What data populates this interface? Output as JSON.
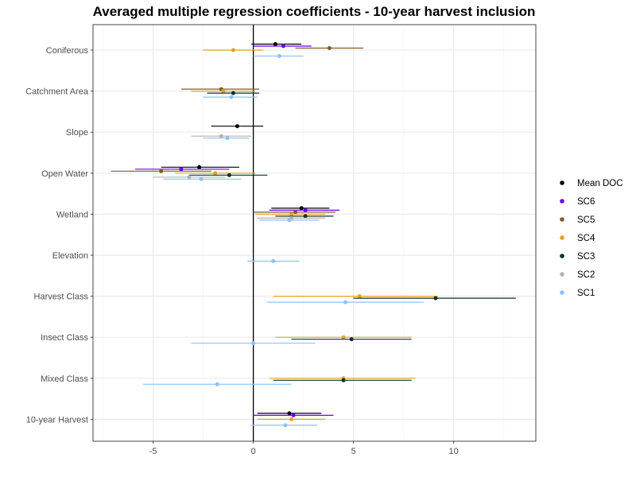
{
  "chart_data": {
    "type": "scatter",
    "title": "Averaged multiple regression coefficients - 10-year harvest inclusion",
    "xlabel": "",
    "ylabel": "",
    "xlim": [
      -8.0,
      14.1
    ],
    "x_ticks": [
      -5,
      0,
      5,
      10
    ],
    "x_tick_labels": [
      "-5",
      "0",
      "5",
      "10"
    ],
    "zero_line": 0,
    "grid": true,
    "legend_position": "right",
    "categories": [
      "Coniferous",
      "Catchment Area",
      "Slope",
      "Open Water",
      "Wetland",
      "Elevation",
      "Harvest Class",
      "Insect Class",
      "Mixed Class",
      "10-year Harvest"
    ],
    "series": [
      {
        "name": "Mean DOC",
        "color": "#000000",
        "points": [
          {
            "category": "Coniferous",
            "estimate": 1.1,
            "lower": -0.1,
            "upper": 2.4
          },
          {
            "category": "Slope",
            "estimate": -0.8,
            "lower": -2.1,
            "upper": 0.5
          },
          {
            "category": "Open Water",
            "estimate": -2.7,
            "lower": -4.6,
            "upper": -0.7
          },
          {
            "category": "Wetland",
            "estimate": 2.4,
            "lower": 0.9,
            "upper": 3.8
          },
          {
            "category": "10-year Harvest",
            "estimate": 1.8,
            "lower": 0.2,
            "upper": 3.4
          }
        ]
      },
      {
        "name": "SC6",
        "color": "#6600ff",
        "points": [
          {
            "category": "Coniferous",
            "estimate": 1.5,
            "lower": 0.0,
            "upper": 2.9
          },
          {
            "category": "Open Water",
            "estimate": -3.6,
            "lower": -5.9,
            "upper": -1.2
          },
          {
            "category": "Wetland",
            "estimate": 2.6,
            "lower": 0.8,
            "upper": 4.3
          },
          {
            "category": "10-year Harvest",
            "estimate": 2.0,
            "lower": 0.0,
            "upper": 4.0
          }
        ]
      },
      {
        "name": "SC5",
        "color": "#7f5a2b",
        "points": [
          {
            "category": "Coniferous",
            "estimate": 3.8,
            "lower": 2.1,
            "upper": 5.5
          },
          {
            "category": "Catchment Area",
            "estimate": -1.6,
            "lower": -3.6,
            "upper": 0.3
          },
          {
            "category": "Open Water",
            "estimate": -4.6,
            "lower": -7.1,
            "upper": -2.1
          },
          {
            "category": "Wetland",
            "estimate": 2.1,
            "lower": 0.0,
            "upper": 4.1
          }
        ]
      },
      {
        "name": "SC4",
        "color": "#e6a21e",
        "points": [
          {
            "category": "Coniferous",
            "estimate": -1.0,
            "lower": -2.5,
            "upper": 0.5
          },
          {
            "category": "Catchment Area",
            "estimate": -1.5,
            "lower": -3.1,
            "upper": 0.1
          },
          {
            "category": "Open Water",
            "estimate": -1.9,
            "lower": -3.9,
            "upper": 0.1
          },
          {
            "category": "Wetland",
            "estimate": 1.9,
            "lower": 0.1,
            "upper": 3.6
          },
          {
            "category": "Harvest Class",
            "estimate": 5.3,
            "lower": 1.0,
            "upper": 9.2
          },
          {
            "category": "Insect Class",
            "estimate": 4.5,
            "lower": 1.1,
            "upper": 7.9
          },
          {
            "category": "Mixed Class",
            "estimate": 4.5,
            "lower": 0.8,
            "upper": 8.1
          },
          {
            "category": "10-year Harvest",
            "estimate": 1.9,
            "lower": 0.2,
            "upper": 3.6
          }
        ]
      },
      {
        "name": "SC3",
        "color": "#0c3030",
        "points": [
          {
            "category": "Catchment Area",
            "estimate": -1.0,
            "lower": -2.3,
            "upper": 0.3
          },
          {
            "category": "Open Water",
            "estimate": -1.2,
            "lower": -3.2,
            "upper": 0.7
          },
          {
            "category": "Wetland",
            "estimate": 2.6,
            "lower": 1.1,
            "upper": 4.0
          },
          {
            "category": "Harvest Class",
            "estimate": 9.1,
            "lower": 5.0,
            "upper": 13.1
          },
          {
            "category": "Insect Class",
            "estimate": 4.9,
            "lower": 1.9,
            "upper": 7.9
          },
          {
            "category": "Mixed Class",
            "estimate": 4.5,
            "lower": 1.0,
            "upper": 7.9
          }
        ]
      },
      {
        "name": "SC2",
        "color": "#b3b3b3",
        "points": [
          {
            "category": "Slope",
            "estimate": -1.6,
            "lower": -3.1,
            "upper": -0.1
          },
          {
            "category": "Open Water",
            "estimate": -3.2,
            "lower": -5.0,
            "upper": -1.4
          },
          {
            "category": "Wetland",
            "estimate": 1.9,
            "lower": 0.2,
            "upper": 3.6
          }
        ]
      },
      {
        "name": "SC1",
        "color": "#8fc1f5",
        "points": [
          {
            "category": "Coniferous",
            "estimate": 1.3,
            "lower": 0.0,
            "upper": 2.5
          },
          {
            "category": "Catchment Area",
            "estimate": -1.1,
            "lower": -2.5,
            "upper": 0.2
          },
          {
            "category": "Slope",
            "estimate": -1.3,
            "lower": -2.5,
            "upper": -0.2
          },
          {
            "category": "Open Water",
            "estimate": -2.6,
            "lower": -4.5,
            "upper": -0.6
          },
          {
            "category": "Wetland",
            "estimate": 1.8,
            "lower": 0.3,
            "upper": 3.3
          },
          {
            "category": "Elevation",
            "estimate": 1.0,
            "lower": -0.3,
            "upper": 2.3
          },
          {
            "category": "Harvest Class",
            "estimate": 4.6,
            "lower": 0.7,
            "upper": 8.5
          },
          {
            "category": "Insect Class",
            "estimate": 0.0,
            "lower": -3.1,
            "upper": 3.1
          },
          {
            "category": "Mixed Class",
            "estimate": -1.8,
            "lower": -5.5,
            "upper": 1.9
          },
          {
            "category": "10-year Harvest",
            "estimate": 1.6,
            "lower": -0.1,
            "upper": 3.2
          }
        ]
      }
    ],
    "legend": [
      "Mean DOC",
      "SC6",
      "SC5",
      "SC4",
      "SC3",
      "SC2",
      "SC1"
    ]
  },
  "colors": {
    "panel_border": "#333333",
    "grid_major": "#ebebeb",
    "grid_minor": "#f5f5f5",
    "zero_line": "#000000",
    "tick_label": "#4d4d4d"
  }
}
